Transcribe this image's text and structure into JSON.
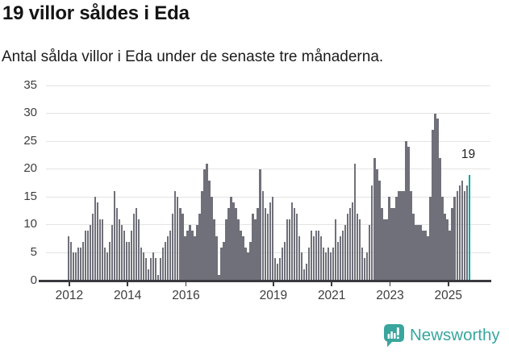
{
  "header": {
    "title": "19 villor såldes i Eda",
    "subtitle": "Antal sålda villor i Eda under de senaste tre månaderna."
  },
  "chart_data": {
    "type": "bar",
    "title": "19 villor såldes i Eda",
    "xlabel": "",
    "ylabel": "",
    "x_start": "2012-01",
    "x_end": "2025-10",
    "ylim": [
      0,
      35
    ],
    "grid": true,
    "y_ticks": [
      0,
      5,
      10,
      15,
      20,
      25,
      30,
      35
    ],
    "x_tick_years": [
      2012,
      2014,
      2016,
      2019,
      2021,
      2023,
      2025
    ],
    "values": [
      8,
      7,
      5,
      5,
      6,
      6,
      7,
      9,
      9,
      10,
      12,
      15,
      14,
      11,
      11,
      6,
      5,
      7,
      10,
      16,
      13,
      11,
      10,
      9,
      7,
      7,
      9,
      12,
      13,
      11,
      6,
      5,
      4,
      2,
      4,
      5,
      4,
      1,
      4,
      6,
      7,
      8,
      9,
      12,
      16,
      15,
      13,
      12,
      8,
      9,
      10,
      9,
      8,
      10,
      12,
      16,
      20,
      21,
      18,
      15,
      11,
      8,
      1,
      6,
      7,
      11,
      13,
      15,
      14,
      13,
      11,
      9,
      8,
      6,
      5,
      7,
      12,
      11,
      13,
      20,
      16,
      13,
      12,
      14,
      15,
      4,
      3,
      4,
      6,
      7,
      11,
      11,
      14,
      13,
      12,
      8,
      5,
      2,
      3,
      6,
      9,
      8,
      9,
      9,
      8,
      6,
      5,
      6,
      5,
      6,
      11,
      7,
      8,
      9,
      10,
      12,
      13,
      14,
      21,
      12,
      11,
      6,
      4,
      5,
      10,
      17,
      22,
      20,
      18,
      13,
      11,
      11,
      15,
      13,
      13,
      15,
      16,
      16,
      16,
      25,
      24,
      16,
      12,
      10,
      10,
      10,
      9,
      9,
      8,
      15,
      27,
      30,
      29,
      22,
      15,
      12,
      11,
      9,
      13,
      15,
      16,
      17,
      18,
      16,
      17,
      19
    ],
    "highlight_last": true,
    "annotation": {
      "text": "19"
    },
    "colors": {
      "bar": "#70707a",
      "highlight": "#00a2a4",
      "grid": "#e4e4e4",
      "axis": "#3a3a3e"
    }
  },
  "footer": {
    "brand": "Newsworthy",
    "brand_color": "#38a69e"
  }
}
